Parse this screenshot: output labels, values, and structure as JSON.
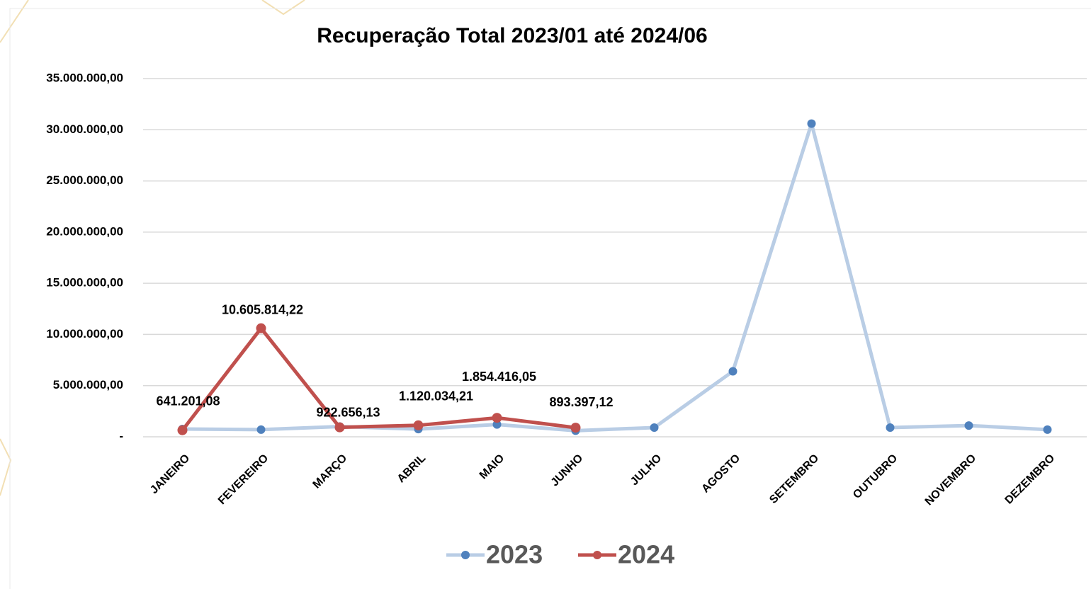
{
  "chart_data": {
    "type": "line",
    "title": "Recuperação Total 2023/01 até 2024/06",
    "categories": [
      "JANEIRO",
      "FEVEREIRO",
      "MARÇO",
      "ABRIL",
      "MAIO",
      "JUNHO",
      "JULHO",
      "AGOSTO",
      "SETEMBRO",
      "OUTUBRO",
      "NOVEMBRO",
      "DEZEMBRO"
    ],
    "series": [
      {
        "name": "2023",
        "color": "#b9cde5",
        "marker_color": "#4f81bd",
        "values": [
          760000,
          700000,
          1000000,
          750000,
          1200000,
          600000,
          900000,
          6400000,
          30600000,
          900000,
          1100000,
          700000
        ]
      },
      {
        "name": "2024",
        "color": "#c0504d",
        "marker_color": "#c0504d",
        "values": [
          641201.08,
          10605814.22,
          922656.13,
          1120034.21,
          1854416.05,
          893397.12,
          null,
          null,
          null,
          null,
          null,
          null
        ],
        "value_labels": [
          "641.201,08",
          "10.605.814,22",
          "922.656,13",
          "1.120.034,21",
          "1.854.416,05",
          "893.397,12",
          null,
          null,
          null,
          null,
          null,
          null
        ]
      }
    ],
    "ylim": [
      0,
      35000000
    ],
    "yticks": [
      {
        "value": 0,
        "label": "-"
      },
      {
        "value": 5000000,
        "label": "5.000.000,00"
      },
      {
        "value": 10000000,
        "label": "10.000.000,00"
      },
      {
        "value": 15000000,
        "label": "15.000.000,00"
      },
      {
        "value": 20000000,
        "label": "20.000.000,00"
      },
      {
        "value": 25000000,
        "label": "25.000.000,00"
      },
      {
        "value": 30000000,
        "label": "30.000.000,00"
      },
      {
        "value": 35000000,
        "label": "35.000.000,00"
      }
    ],
    "grid": true,
    "legend": "bottom"
  }
}
